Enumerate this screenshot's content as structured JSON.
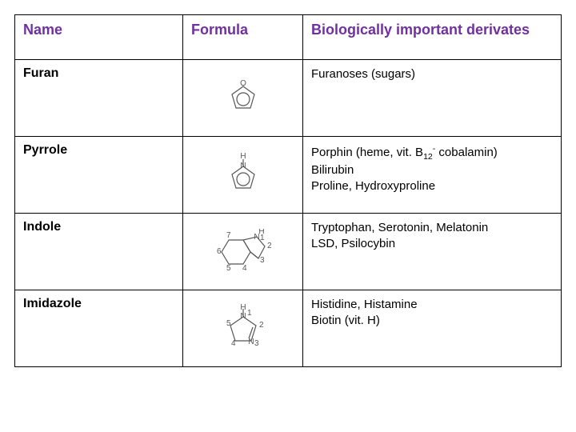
{
  "table": {
    "headers": {
      "name": "Name",
      "formula": "Formula",
      "derivatives": "Biologically important derivates"
    },
    "header_color": "#7030a0",
    "border_color": "#000000",
    "rows": [
      {
        "name": "Furan",
        "formula_type": "furan",
        "derivatives": [
          "Furanoses (sugars)"
        ]
      },
      {
        "name": "Pyrrole",
        "formula_type": "pyrrole",
        "derivatives": [
          "Porphin (heme, vit. B<sub>12</sub><sup>-</sup> cobalamin)",
          "Bilirubin",
          "Proline, Hydroxyproline"
        ]
      },
      {
        "name": "Indole",
        "formula_type": "indole",
        "derivatives": [
          "Tryptophan, Serotonin, Melatonin",
          "LSD, Psilocybin"
        ]
      },
      {
        "name": "Imidazole",
        "formula_type": "imidazole",
        "derivatives": [
          "Histidine, Histamine",
          "Biotin (vit. H)"
        ]
      }
    ]
  },
  "formula_svg": {
    "stroke": "#444444",
    "stroke_width": 1.2,
    "ring_radius": 14,
    "font_size": 10
  }
}
